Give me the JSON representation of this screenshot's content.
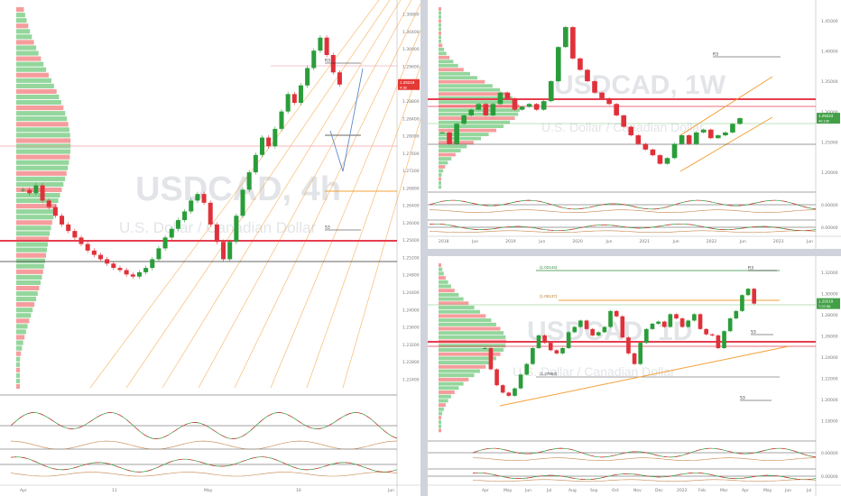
{
  "panes": [
    {
      "id": "left",
      "symbol": "USDCAD",
      "timeframe": "4h",
      "subtitle": "U.S. Dollar / Canadian Dollar",
      "price_tag": "1.29219",
      "price_tag2": "4:38",
      "levels": [
        "R3",
        "S3"
      ],
      "y_ticks": [
        "1.30800",
        "1.30400",
        "1.30000",
        "1.29600",
        "1.29200",
        "1.28800",
        "1.28400",
        "1.28000",
        "1.27600",
        "1.27200",
        "1.26800",
        "1.26400",
        "1.26000",
        "1.25600",
        "1.25200",
        "1.24800",
        "1.24400",
        "1.24000",
        "1.23600",
        "1.23200",
        "1.22800",
        "1.22400"
      ],
      "x_ticks": [
        "Apr",
        "11",
        "May",
        "16",
        "Jun"
      ]
    },
    {
      "id": "top-right",
      "symbol": "USDCAD",
      "timeframe": "1W",
      "subtitle": "U.S. Dollar / Canadian Dollar",
      "currency": "CAD",
      "price_tag": "1.29223",
      "price_tag2": "4d 13h",
      "levels": [
        "R3"
      ],
      "y_ticks": [
        "1.45000",
        "1.40000",
        "1.35000",
        "1.30000",
        "1.25000",
        "1.20000"
      ],
      "osc_ticks": [
        "0.00000"
      ],
      "x_ticks": [
        "2018",
        "Jun",
        "2019",
        "Jun",
        "2020",
        "Jun",
        "2021",
        "Jun",
        "2022",
        "Jun",
        "2023",
        "Jun"
      ]
    },
    {
      "id": "bottom-right",
      "symbol": "USDCAD",
      "timeframe": "1D",
      "subtitle": "U.S. Dollar / Canadian Dollar",
      "currency": "CAD",
      "price_tag": "1.29219",
      "price_tag2": "7:22:58",
      "levels": [
        "R3",
        "S3",
        "S3"
      ],
      "fib_labels": [
        "(1.02144)",
        "(1.05137)",
        "(1.27963)"
      ],
      "y_ticks": [
        "1.32000",
        "1.30000",
        "1.28000",
        "1.26000",
        "1.24000",
        "1.22000",
        "1.20000",
        "1.18000"
      ],
      "osc_ticks": [
        "0.00000"
      ],
      "x_ticks": [
        "Apr",
        "May",
        "Jun",
        "Jul",
        "Aug",
        "Sep",
        "Oct",
        "Nov",
        "Dec",
        "2022",
        "Feb",
        "Mar",
        "Apr",
        "May",
        "Jun",
        "Jul"
      ]
    }
  ],
  "colors": {
    "up": "#2a9d3a",
    "down": "#e0313a",
    "profile_up": "#3cb44b",
    "profile_down": "#ef4a4a",
    "fib": "#f3a03a",
    "resistance": "#e53e4f",
    "tag": "#e53935",
    "tag_green": "#43a047"
  },
  "chart_data": [
    {
      "type": "candlestick",
      "title": "USDCAD 4h",
      "ylim": [
        1.222,
        1.31
      ],
      "close": [
        1.268,
        1.2672,
        1.269,
        1.2655,
        1.264,
        1.262,
        1.26,
        1.2585,
        1.257,
        1.2555,
        1.254,
        1.253,
        1.252,
        1.251,
        1.25,
        1.2495,
        1.2485,
        1.248,
        1.249,
        1.25,
        1.252,
        1.2545,
        1.257,
        1.259,
        1.261,
        1.263,
        1.2655,
        1.267,
        1.265,
        1.26,
        1.256,
        1.252,
        1.256,
        1.262,
        1.268,
        1.272,
        1.276,
        1.28,
        1.278,
        1.282,
        1.286,
        1.29,
        1.288,
        1.292,
        1.296,
        1.3,
        1.303,
        1.299,
        1.295,
        1.2922
      ]
    },
    {
      "type": "candlestick",
      "title": "USDCAD 1W",
      "ylim": [
        1.17,
        1.49
      ],
      "close": [
        1.27,
        1.25,
        1.285,
        1.3,
        1.31,
        1.32,
        1.3,
        1.32,
        1.34,
        1.33,
        1.31,
        1.315,
        1.32,
        1.31,
        1.325,
        1.36,
        1.42,
        1.455,
        1.4,
        1.38,
        1.36,
        1.34,
        1.33,
        1.32,
        1.3,
        1.28,
        1.265,
        1.25,
        1.24,
        1.23,
        1.215,
        1.225,
        1.25,
        1.265,
        1.25,
        1.27,
        1.275,
        1.26,
        1.265,
        1.27,
        1.285,
        1.295
      ]
    },
    {
      "type": "candlestick",
      "title": "USDCAD 1D",
      "ylim": [
        1.17,
        1.33
      ],
      "close": [
        1.25,
        1.23,
        1.215,
        1.208,
        1.205,
        1.212,
        1.225,
        1.235,
        1.25,
        1.262,
        1.255,
        1.248,
        1.245,
        1.25,
        1.265,
        1.27,
        1.276,
        1.268,
        1.262,
        1.265,
        1.27,
        1.285,
        1.28,
        1.26,
        1.245,
        1.235,
        1.255,
        1.268,
        1.273,
        1.275,
        1.27,
        1.282,
        1.278,
        1.27,
        1.276,
        1.282,
        1.268,
        1.263,
        1.262,
        1.25,
        1.266,
        1.278,
        1.285,
        1.3,
        1.306,
        1.292
      ]
    }
  ]
}
